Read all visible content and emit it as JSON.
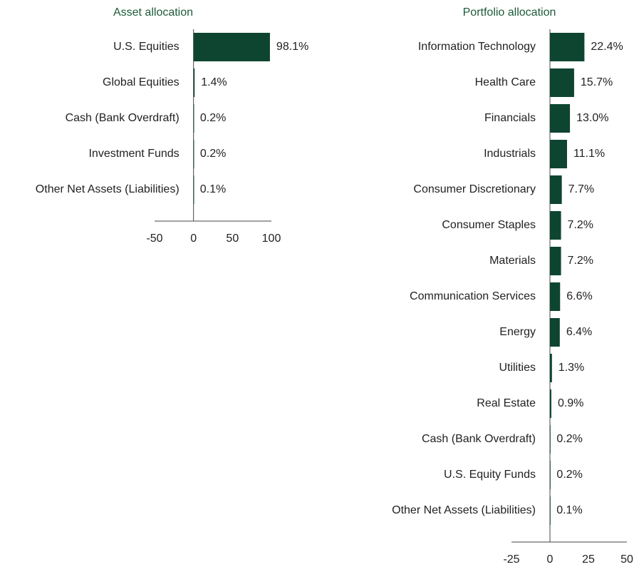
{
  "chart_data": [
    {
      "type": "bar",
      "orientation": "horizontal",
      "title": "Asset allocation",
      "categories": [
        "U.S. Equities",
        "Global Equities",
        "Cash (Bank Overdraft)",
        "Investment Funds",
        "Other Net Assets (Liabilities)"
      ],
      "values": [
        98.1,
        1.4,
        0.2,
        0.2,
        0.1
      ],
      "value_labels": [
        "98.1%",
        "1.4%",
        "0.2%",
        "0.2%",
        "0.1%"
      ],
      "color": "#0d4530",
      "xlim": [
        -50,
        100
      ],
      "xticks": [
        -50,
        0,
        50,
        100
      ]
    },
    {
      "type": "bar",
      "orientation": "horizontal",
      "title": "Portfolio allocation",
      "categories": [
        "Information Technology",
        "Health Care",
        "Financials",
        "Industrials",
        "Consumer Discretionary",
        "Consumer Staples",
        "Materials",
        "Communication Services",
        "Energy",
        "Utilities",
        "Real Estate",
        "Cash (Bank Overdraft)",
        "U.S. Equity Funds",
        "Other Net Assets (Liabilities)"
      ],
      "values": [
        22.4,
        15.7,
        13.0,
        11.1,
        7.7,
        7.2,
        7.2,
        6.6,
        6.4,
        1.3,
        0.9,
        0.2,
        0.2,
        0.1
      ],
      "value_labels": [
        "22.4%",
        "15.7%",
        "13.0%",
        "11.1%",
        "7.7%",
        "7.2%",
        "7.2%",
        "6.6%",
        "6.4%",
        "1.3%",
        "0.9%",
        "0.2%",
        "0.2%",
        "0.1%"
      ],
      "color": "#0d4530",
      "xlim": [
        -25,
        50
      ],
      "xticks": [
        -25,
        0,
        25,
        50
      ]
    }
  ]
}
